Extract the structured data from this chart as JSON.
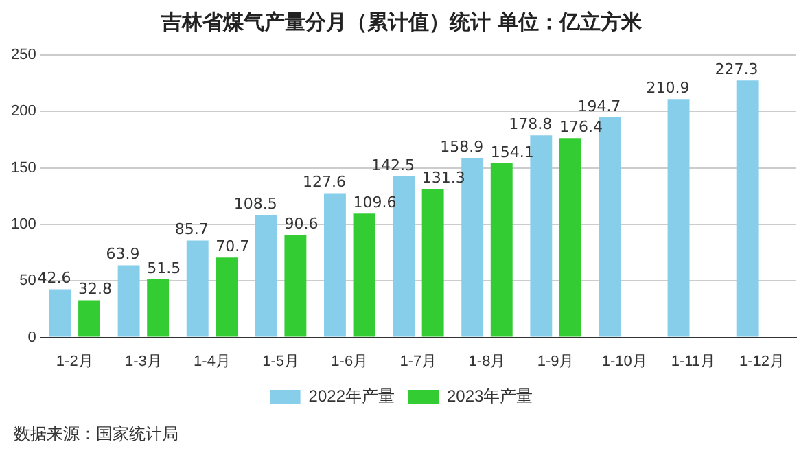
{
  "chart_data": {
    "type": "bar",
    "title": "吉林省煤气产量分月（累计值）统计 单位：亿立方米",
    "categories": [
      "1-2月",
      "1-3月",
      "1-4月",
      "1-5月",
      "1-6月",
      "1-7月",
      "1-8月",
      "1-9月",
      "1-10月",
      "1-11月",
      "1-12月"
    ],
    "series": [
      {
        "name": "2022年产量",
        "color": "#87ceeb",
        "values": [
          42.6,
          63.9,
          85.7,
          108.5,
          127.6,
          142.5,
          158.9,
          178.8,
          194.7,
          210.9,
          227.3
        ]
      },
      {
        "name": "2023年产量",
        "color": "#33cc33",
        "values": [
          32.8,
          51.5,
          70.7,
          90.6,
          109.6,
          131.3,
          154.1,
          176.4,
          null,
          null,
          null
        ]
      }
    ],
    "ylim": [
      0,
      250
    ],
    "yticks": [
      0,
      50,
      100,
      150,
      200,
      250
    ],
    "grid": "y",
    "legend": "bottom",
    "data_labels": true,
    "annotations": [
      "数据来源：国家统计局"
    ]
  }
}
